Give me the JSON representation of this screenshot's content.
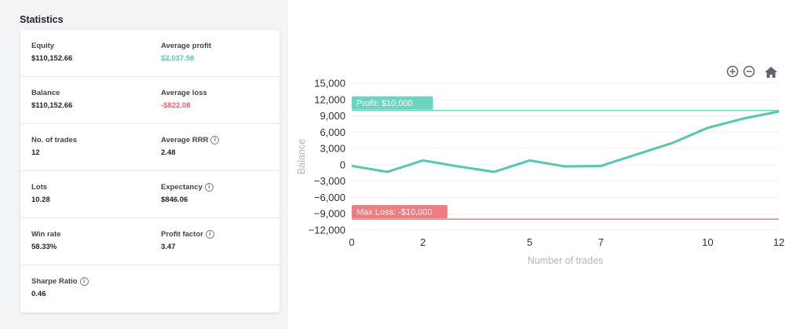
{
  "stats": {
    "title": "Statistics",
    "rows": [
      {
        "left": {
          "label": "Equity",
          "value": "$110,152.66"
        },
        "right": {
          "label": "Average profit",
          "value": "$2,037.58"
        }
      },
      {
        "left": {
          "label": "Balance",
          "value": "$110,152.66"
        },
        "right": {
          "label": "Average loss",
          "value": "-$822.08"
        }
      },
      {
        "left": {
          "label": "No. of trades",
          "value": "12"
        },
        "right": {
          "label": "Average RRR",
          "value": "2.48"
        }
      },
      {
        "left": {
          "label": "Lots",
          "value": "10.28"
        },
        "right": {
          "label": "Expectancy",
          "value": "$846.06"
        }
      },
      {
        "left": {
          "label": "Win rate",
          "value": "58.33%"
        },
        "right": {
          "label": "Profit factor",
          "value": "3.47"
        }
      },
      {
        "left": {
          "label": "Sharpe Ratio",
          "value": "0.46"
        }
      }
    ],
    "info_icon": "i",
    "colors": {
      "positive": "#4fcdb0",
      "negative": "#f0626a"
    }
  },
  "toolbar": {
    "zoom_in": "zoom-in-icon",
    "zoom_out": "zoom-out-icon",
    "home": "home-icon"
  },
  "chart_data": {
    "type": "line",
    "xlabel": "Number of trades",
    "ylabel": "Balance",
    "xlim": [
      0,
      12
    ],
    "ylim": [
      -13000,
      15000
    ],
    "x_ticks": [
      0,
      2,
      5,
      7,
      10,
      12
    ],
    "y_ticks": [
      15000,
      12000,
      9000,
      6000,
      3000,
      0,
      -3000,
      -6000,
      -9000,
      -12000
    ],
    "y_tick_labels": [
      "15,000",
      "12,000",
      "9,000",
      "6,000",
      "3,000",
      "0",
      "−3,000",
      "−6,000",
      "−9,000",
      "−12,000"
    ],
    "series": [
      {
        "color": "#56c8b0",
        "points": [
          [
            0,
            -200
          ],
          [
            1,
            -1300
          ],
          [
            2,
            800
          ],
          [
            3,
            -300
          ],
          [
            4,
            -1300
          ],
          [
            5,
            800
          ],
          [
            6,
            -300
          ],
          [
            7,
            -200
          ],
          [
            8,
            1900
          ],
          [
            9,
            4000
          ],
          [
            10,
            6800
          ],
          [
            11,
            8500
          ],
          [
            12,
            9800
          ]
        ]
      }
    ],
    "annotations": [
      {
        "y": 10000,
        "label": "Profit: $10,000",
        "color": "#6dd4bf"
      },
      {
        "y": -10000,
        "label": "Max Loss: -$10,000",
        "color": "#f07c80"
      }
    ],
    "grid": true
  }
}
